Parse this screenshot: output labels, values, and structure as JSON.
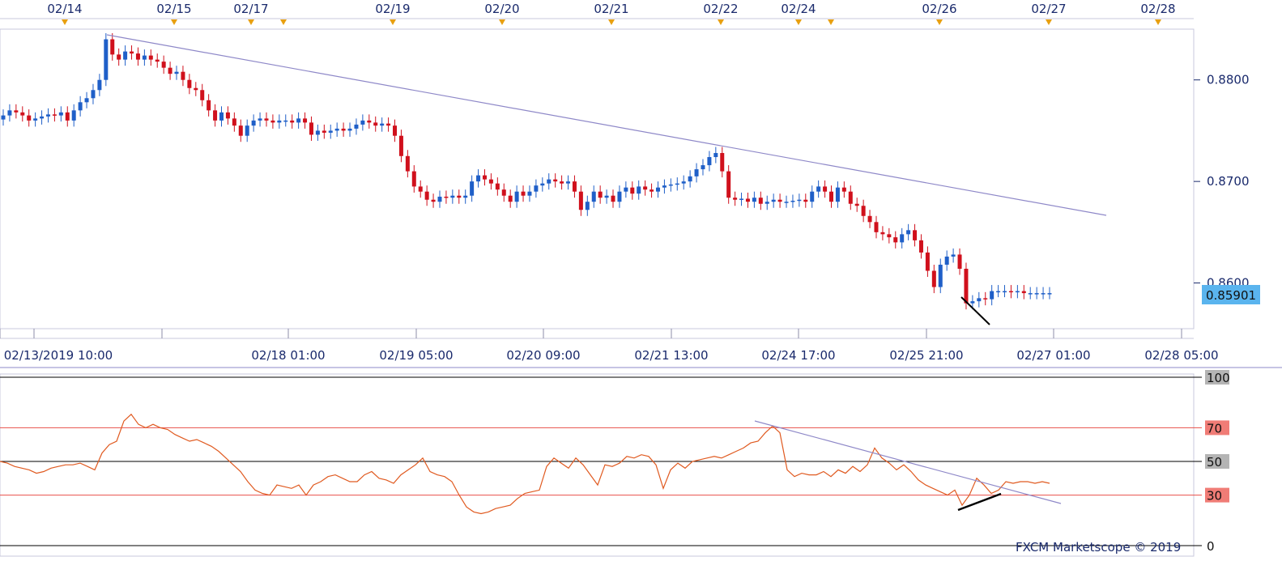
{
  "chart_data": [
    {
      "type": "candlestick",
      "top_dates": [
        "02/14",
        "02/15",
        "02/17",
        "02/19",
        "02/20",
        "02/21",
        "02/22",
        "02/24",
        "02/26",
        "02/27",
        "02/28"
      ],
      "x_tick_labels": [
        "02/13/2019 10:00",
        "02/18 01:00",
        "02/19 05:00",
        "02/20 09:00",
        "02/21 13:00",
        "02/24 17:00",
        "02/25 21:00",
        "02/27 01:00",
        "02/28 05:00"
      ],
      "y_tick_labels": [
        "0.8800",
        "0.8700",
        "0.8600"
      ],
      "ylim": [
        0.8555,
        0.885
      ],
      "current_price": 0.859,
      "current_price_label": "0.85901",
      "colors": {
        "up": "#1f5fc8",
        "down": "#d0101c",
        "trendline": "#8e88c8",
        "price_tag": "#5ab4ee"
      },
      "close_series": [
        0.8765,
        0.877,
        0.8768,
        0.8765,
        0.876,
        0.8762,
        0.8764,
        0.8766,
        0.8765,
        0.8768,
        0.876,
        0.877,
        0.8778,
        0.8782,
        0.879,
        0.88,
        0.884,
        0.8825,
        0.882,
        0.8828,
        0.8826,
        0.882,
        0.8824,
        0.882,
        0.8818,
        0.8812,
        0.8806,
        0.8808,
        0.88,
        0.8792,
        0.879,
        0.878,
        0.877,
        0.876,
        0.8768,
        0.8762,
        0.8755,
        0.8745,
        0.8755,
        0.876,
        0.8762,
        0.876,
        0.8758,
        0.876,
        0.876,
        0.8758,
        0.8762,
        0.8758,
        0.8746,
        0.875,
        0.8748,
        0.875,
        0.8752,
        0.875,
        0.8752,
        0.8756,
        0.876,
        0.8758,
        0.8755,
        0.8757,
        0.8755,
        0.8745,
        0.8725,
        0.871,
        0.8695,
        0.869,
        0.8682,
        0.868,
        0.8685,
        0.8684,
        0.8686,
        0.8684,
        0.8686,
        0.87,
        0.8706,
        0.8702,
        0.8698,
        0.8692,
        0.8686,
        0.868,
        0.869,
        0.8686,
        0.869,
        0.8696,
        0.8698,
        0.8702,
        0.87,
        0.8698,
        0.87,
        0.869,
        0.8672,
        0.868,
        0.869,
        0.8684,
        0.8686,
        0.868,
        0.869,
        0.8694,
        0.8688,
        0.8695,
        0.8692,
        0.869,
        0.8694,
        0.8696,
        0.8697,
        0.8698,
        0.87,
        0.8705,
        0.8712,
        0.8716,
        0.8724,
        0.8728,
        0.871,
        0.8684,
        0.8682,
        0.8683,
        0.868,
        0.8684,
        0.8678,
        0.868,
        0.8682,
        0.868,
        0.868,
        0.8681,
        0.8682,
        0.868,
        0.869,
        0.8695,
        0.869,
        0.868,
        0.8694,
        0.869,
        0.8678,
        0.8676,
        0.8666,
        0.866,
        0.865,
        0.8648,
        0.8645,
        0.864,
        0.8648,
        0.8652,
        0.8642,
        0.863,
        0.8612,
        0.8596,
        0.8618,
        0.8626,
        0.8628,
        0.8614,
        0.858,
        0.8582,
        0.8585,
        0.8584,
        0.8592,
        0.8592,
        0.8592,
        0.8591,
        0.8592,
        0.859,
        0.859,
        0.859,
        0.859,
        0.859
      ],
      "annotations": [
        "downward trendline from 02/14 high",
        "black line near 02/26 lows"
      ]
    },
    {
      "type": "line",
      "indicator": "RSI",
      "y_tick_labels": [
        "100",
        "70",
        "50",
        "30",
        "0"
      ],
      "ylim": [
        0,
        100
      ],
      "levels": [
        {
          "value": 100,
          "color": "#000000"
        },
        {
          "value": 70,
          "color": "#e8504a"
        },
        {
          "value": 50,
          "color": "#000000"
        },
        {
          "value": 30,
          "color": "#e8504a"
        },
        {
          "value": 0,
          "color": "#000000"
        }
      ],
      "colors": {
        "line": "#e05a20",
        "trendline": "#8e88c8"
      },
      "values": [
        50,
        49,
        47,
        46,
        45,
        43,
        44,
        46,
        47,
        48,
        48,
        49,
        47,
        45,
        55,
        60,
        62,
        74,
        78,
        72,
        70,
        72,
        70,
        69,
        66,
        64,
        62,
        63,
        61,
        59,
        56,
        52,
        48,
        44,
        38,
        33,
        31,
        30,
        36,
        35,
        34,
        36,
        30,
        36,
        38,
        41,
        42,
        40,
        38,
        38,
        42,
        44,
        40,
        39,
        37,
        42,
        45,
        48,
        52,
        44,
        42,
        41,
        38,
        30,
        23,
        20,
        19,
        20,
        22,
        23,
        24,
        28,
        31,
        32,
        33,
        47,
        52,
        49,
        46,
        52,
        48,
        42,
        36,
        48,
        47,
        49,
        53,
        52,
        54,
        53,
        48,
        34,
        45,
        49,
        46,
        50,
        51,
        52,
        53,
        52,
        54,
        56,
        58,
        61,
        62,
        67,
        71,
        67,
        45,
        41,
        43,
        42,
        42,
        44,
        41,
        45,
        43,
        47,
        44,
        48,
        58,
        52,
        49,
        45,
        48,
        44,
        39,
        36,
        34,
        32,
        30,
        33,
        24,
        30,
        40,
        36,
        31,
        33,
        38,
        37,
        38,
        38,
        37,
        38,
        37
      ],
      "credit": "FXCM Marketscope © 2019"
    }
  ]
}
